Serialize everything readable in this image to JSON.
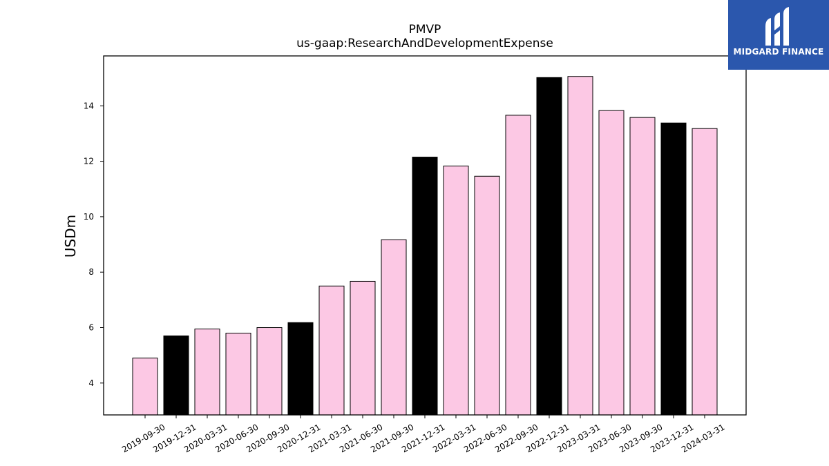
{
  "colors": {
    "primary": "#fcc8e4",
    "highlight": "#000000",
    "edge": "#000000",
    "logo_bg": "#2b57ad"
  },
  "logo": {
    "icon": "midgard-logo-icon",
    "text": "MIDGARD FINANCE"
  },
  "chart_data": {
    "type": "bar",
    "title": "PMVP",
    "subtitle": "us-gaap:ResearchAndDevelopmentExpense",
    "xlabel": "",
    "ylabel": "USDm",
    "ylim": [
      2.85,
      15.8
    ],
    "yticks": [
      4,
      6,
      8,
      10,
      12,
      14
    ],
    "grid": false,
    "categories": [
      "2019-09-30",
      "2019-12-31",
      "2020-03-31",
      "2020-06-30",
      "2020-09-30",
      "2020-12-31",
      "2021-03-31",
      "2021-06-30",
      "2021-09-30",
      "2021-12-31",
      "2022-03-31",
      "2022-06-30",
      "2022-09-30",
      "2022-12-31",
      "2023-03-31",
      "2023-06-30",
      "2023-09-30",
      "2023-12-31",
      "2024-03-31"
    ],
    "values": [
      4.9,
      5.7,
      5.95,
      5.8,
      6.0,
      6.18,
      7.5,
      7.67,
      9.17,
      12.15,
      11.83,
      11.46,
      13.66,
      15.02,
      15.06,
      13.83,
      13.58,
      13.38,
      13.18
    ],
    "highlighted": [
      false,
      true,
      false,
      false,
      false,
      true,
      false,
      false,
      false,
      true,
      false,
      false,
      false,
      true,
      false,
      false,
      false,
      true,
      false
    ]
  }
}
